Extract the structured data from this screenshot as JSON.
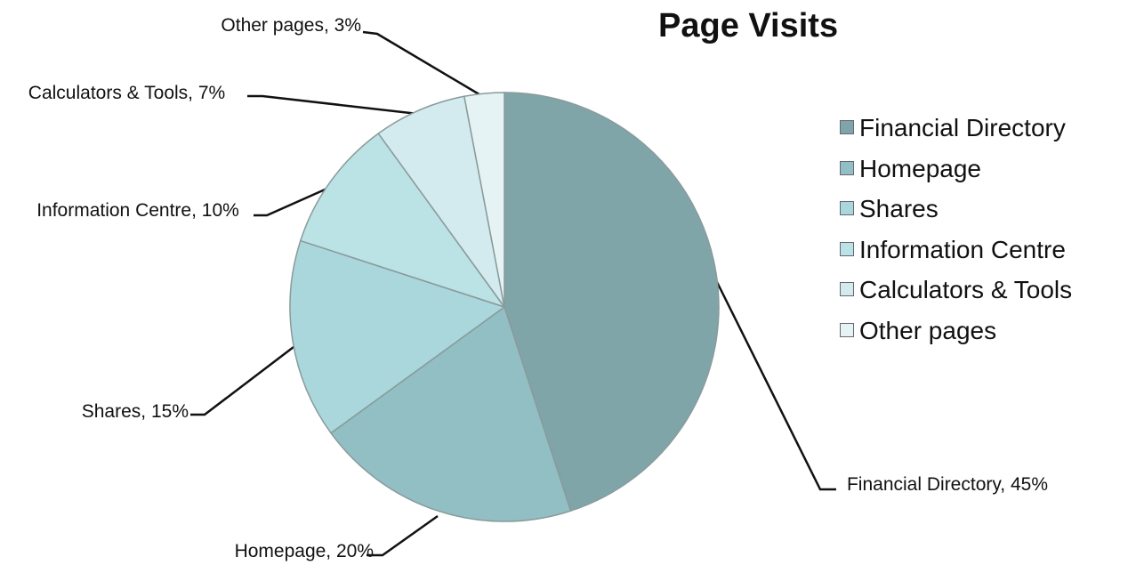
{
  "chart_data": {
    "type": "pie",
    "title": "Page Visits",
    "categories": [
      "Financial Directory",
      "Homepage",
      "Shares",
      "Information Centre",
      "Calculators & Tools",
      "Other pages"
    ],
    "values": [
      45,
      20,
      15,
      10,
      7,
      3
    ],
    "value_labels": [
      "Financial Directory, 45%",
      "Homepage, 20%",
      "Shares, 15%",
      "Information Centre, 10%",
      "Calculators & Tools, 7%",
      "Other pages, 3%"
    ],
    "colors": [
      "#7fa5a8",
      "#92bfc3",
      "#a9d7db",
      "#bbe2e5",
      "#d3ebee",
      "#e5f3f4"
    ],
    "legend": "right"
  }
}
